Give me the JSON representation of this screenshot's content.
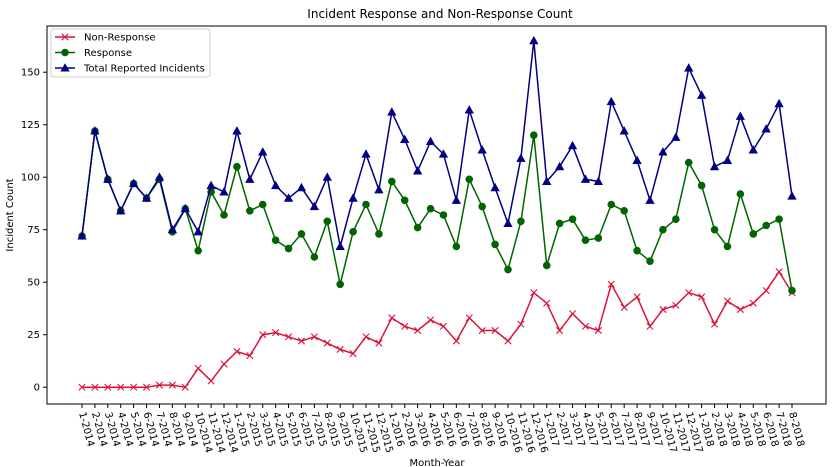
{
  "chart_data": {
    "type": "line",
    "title": "Incident Response and Non-Response Count",
    "xlabel": "Month-Year",
    "ylabel": "Incident Count",
    "ylim": [
      -8,
      172
    ],
    "yticks": [
      0,
      25,
      50,
      75,
      100,
      125,
      150
    ],
    "grid": false,
    "legend_position": "top-left",
    "categories": [
      "1-2014",
      "2-2014",
      "3-2014",
      "4-2014",
      "5-2014",
      "6-2014",
      "7-2014",
      "8-2014",
      "9-2014",
      "10-2014",
      "11-2014",
      "12-2014",
      "1-2015",
      "2-2015",
      "3-2015",
      "4-2015",
      "5-2015",
      "6-2015",
      "7-2015",
      "8-2015",
      "9-2015",
      "10-2015",
      "11-2015",
      "12-2015",
      "1-2016",
      "2-2016",
      "3-2016",
      "4-2016",
      "5-2016",
      "6-2016",
      "7-2016",
      "8-2016",
      "9-2016",
      "10-2016",
      "11-2016",
      "12-2016",
      "1-2017",
      "2-2017",
      "3-2017",
      "4-2017",
      "5-2017",
      "6-2017",
      "7-2017",
      "8-2017",
      "9-2017",
      "10-2017",
      "11-2017",
      "12-2017",
      "1-2018",
      "2-2018",
      "3-2018",
      "4-2018",
      "5-2018",
      "6-2018",
      "7-2018",
      "8-2018"
    ],
    "series": [
      {
        "name": "Non-Response",
        "color": "#dc143c",
        "marker": "x",
        "values": [
          0,
          0,
          0,
          0,
          0,
          0,
          1,
          1,
          0,
          9,
          3,
          11,
          17,
          15,
          25,
          26,
          24,
          22,
          24,
          21,
          18,
          16,
          24,
          21,
          33,
          29,
          27,
          32,
          29,
          22,
          33,
          27,
          27,
          22,
          30,
          45,
          40,
          27,
          35,
          29,
          27,
          49,
          38,
          43,
          29,
          37,
          39,
          45,
          43,
          30,
          41,
          37,
          40,
          46,
          55,
          45
        ]
      },
      {
        "name": "Response",
        "color": "#006400",
        "marker": "circle",
        "values": [
          72,
          122,
          99,
          84,
          97,
          90,
          99,
          74,
          85,
          65,
          93,
          82,
          105,
          84,
          87,
          70,
          66,
          73,
          62,
          79,
          49,
          74,
          87,
          73,
          98,
          89,
          76,
          85,
          82,
          67,
          99,
          86,
          68,
          56,
          79,
          120,
          58,
          78,
          80,
          70,
          71,
          87,
          84,
          65,
          60,
          75,
          80,
          107,
          96,
          75,
          67,
          92,
          73,
          77,
          80,
          46
        ]
      },
      {
        "name": "Total Reported Incidents",
        "color": "#000080",
        "marker": "triangle",
        "values": [
          72,
          122,
          99,
          84,
          97,
          90,
          100,
          75,
          85,
          74,
          96,
          93,
          122,
          99,
          112,
          96,
          90,
          95,
          86,
          100,
          67,
          90,
          111,
          94,
          131,
          118,
          103,
          117,
          111,
          89,
          132,
          113,
          95,
          78,
          109,
          165,
          98,
          105,
          115,
          99,
          98,
          136,
          122,
          108,
          89,
          112,
          119,
          152,
          139,
          105,
          108,
          129,
          113,
          123,
          135,
          91
        ]
      }
    ]
  }
}
